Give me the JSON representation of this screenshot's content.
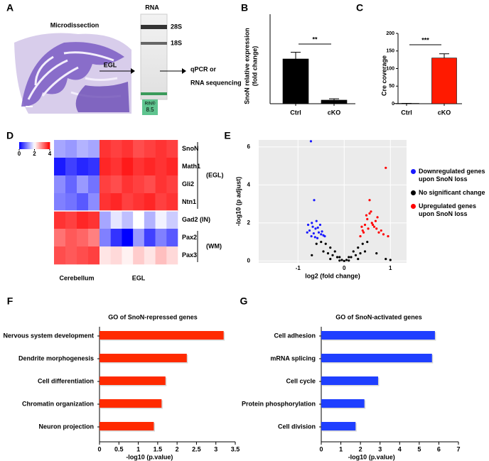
{
  "panel_labels": [
    "A",
    "B",
    "C",
    "D",
    "E",
    "F",
    "G"
  ],
  "panel_a": {
    "image_label": "Microdissection",
    "arrow_label": "EGL",
    "gel_label": "RNA",
    "bands": [
      "28S",
      "18S"
    ],
    "output": [
      "qPCR or",
      "RNA sequencing"
    ],
    "rin_label": "RIN®",
    "rin_value": "8.5"
  },
  "chart_data": [
    {
      "type": "bar",
      "ylabel": [
        "SnoN relative expression",
        "(fold change)"
      ],
      "categories": [
        "Ctrl",
        "cKO"
      ],
      "values": [
        1.0,
        0.08
      ],
      "errors": [
        0.15,
        0.03
      ],
      "color": "#000000",
      "ylim": [
        0,
        2
      ],
      "significance": "**"
    },
    {
      "type": "bar",
      "ylabel": [
        "Cre coverage"
      ],
      "categories": [
        "Ctrl",
        "cKO"
      ],
      "values": [
        1,
        130
      ],
      "errors": [
        0,
        12
      ],
      "color": "#ff1a00",
      "ylim": [
        0,
        200
      ],
      "yticks": [
        0,
        50,
        100,
        150,
        200
      ],
      "significance": "***"
    },
    {
      "type": "heatmap",
      "rows": [
        "SnoN",
        "Math1",
        "Gli2",
        "Ntn1",
        "Gad2 (IN)",
        "Pax2",
        "Pax3"
      ],
      "groups": [
        {
          "label": "Cerebellum",
          "values": [
            [
              1.3,
              1.2,
              1.4,
              1.3
            ],
            [
              0.2,
              0.5,
              0.3,
              0.4
            ],
            [
              1.1,
              0.8,
              1.2,
              0.9
            ],
            [
              1.0,
              0.9,
              0.7,
              1.1
            ],
            [
              3.6,
              3.5,
              3.7,
              3.6
            ],
            [
              3.1,
              3.3,
              3.2,
              3.0
            ],
            [
              3.4,
              3.3,
              3.4,
              3.5
            ]
          ]
        },
        {
          "label": "EGL",
          "values": [
            [
              3.6,
              3.5,
              3.6,
              3.4,
              3.5,
              3.6,
              3.5
            ],
            [
              3.7,
              3.6,
              3.8,
              3.6,
              3.7,
              3.6,
              3.7
            ],
            [
              3.5,
              3.4,
              3.6,
              3.5,
              3.4,
              3.6,
              3.5
            ],
            [
              3.6,
              3.7,
              3.5,
              3.6,
              3.7,
              3.5,
              3.6
            ],
            [
              1.3,
              1.8,
              1.5,
              2.0,
              1.4,
              1.9,
              1.6
            ],
            [
              1.0,
              0.4,
              0.0,
              1.2,
              0.5,
              1.0,
              0.7
            ],
            [
              2.2,
              2.3,
              2.1,
              2.4,
              2.2,
              2.5,
              2.3
            ]
          ]
        }
      ],
      "row_groups": [
        "(EGL)",
        "(WM)"
      ],
      "zlim": [
        0,
        4
      ],
      "zticks": [
        0,
        2,
        4
      ],
      "colors": [
        "#0000ff",
        "#ffffff",
        "#ff0000"
      ]
    },
    {
      "type": "scatter",
      "xlabel": "log2 (fold change)",
      "ylabel": "-log10 (p adjust)",
      "xlim": [
        -1.85,
        1.35
      ],
      "ylim": [
        -0.1,
        6.37
      ],
      "xticks": [
        -1,
        0,
        1
      ],
      "yticks": [
        0,
        2,
        4,
        6
      ],
      "series": [
        {
          "name": "Downregulated genes upon SnoN loss",
          "color": "#1a1aff",
          "x": [
            -0.72,
            -0.65,
            -0.78,
            -0.7,
            -0.62,
            -0.55,
            -0.6,
            -0.68,
            -0.75,
            -0.5,
            -0.58,
            -0.45,
            -0.52,
            -0.66,
            -0.71,
            -0.48,
            -0.63,
            -0.57,
            -0.8,
            -0.42
          ],
          "values": [
            6.3,
            3.2,
            1.9,
            2.0,
            1.7,
            1.5,
            2.1,
            1.8,
            1.6,
            1.4,
            1.2,
            1.35,
            1.9,
            1.45,
            1.3,
            1.55,
            1.25,
            1.75,
            1.5,
            1.3
          ]
        },
        {
          "name": "No significant change",
          "color": "#000000",
          "x": [
            -0.6,
            -0.5,
            -0.4,
            -0.3,
            -0.2,
            -0.1,
            0,
            0.1,
            0.2,
            0.3,
            0.4,
            0.5,
            -0.45,
            -0.35,
            -0.25,
            -0.15,
            -0.05,
            0.05,
            0.15,
            0.25,
            0.35,
            0.45,
            0.9,
            1.0,
            0.7,
            -0.7,
            -0.3,
            0.3,
            -0.1,
            0.1
          ],
          "values": [
            0.9,
            1.0,
            0.9,
            0.7,
            0.5,
            0.2,
            0,
            0.2,
            0.5,
            0.7,
            0.9,
            1.0,
            0.5,
            0.4,
            0.3,
            0.2,
            0.05,
            0.05,
            0.2,
            0.3,
            0.4,
            0.5,
            0.1,
            0.05,
            0.4,
            0.3,
            0.1,
            0.1,
            0.02,
            0.02
          ]
        },
        {
          "name": "Upregulated genes upon SnoN loss",
          "color": "#ff0000",
          "x": [
            0.9,
            0.55,
            0.35,
            0.4,
            0.45,
            0.5,
            0.55,
            0.6,
            0.65,
            0.7,
            0.75,
            0.8,
            0.85,
            0.38,
            0.48,
            0.58,
            0.68,
            0.42,
            0.52,
            0.62,
            0.72,
            0.95
          ],
          "values": [
            4.9,
            3.2,
            1.3,
            1.6,
            1.9,
            2.2,
            2.5,
            2.0,
            1.8,
            1.7,
            1.5,
            1.6,
            1.4,
            1.8,
            2.4,
            2.6,
            2.1,
            1.5,
            1.7,
            1.9,
            2.3,
            1.3
          ]
        }
      ]
    },
    {
      "type": "hbar",
      "title": "GO of SnoN-repressed genes",
      "xlabel": "-log10 (p.value)",
      "categories": [
        "Nervous system development",
        "Dendrite morphogenesis",
        "Cell differentiation",
        "Chromatin organization",
        "Neuron projection"
      ],
      "values": [
        3.2,
        2.25,
        1.7,
        1.6,
        1.4
      ],
      "color": "#ff2a00",
      "xlim": [
        0,
        3.5
      ],
      "xticks": [
        0,
        0.5,
        1,
        1.5,
        2,
        2.5,
        3,
        3.5
      ]
    },
    {
      "type": "hbar",
      "title": "GO of SnoN-activated genes",
      "xlabel": "-log10 (p.value)",
      "categories": [
        "Cell adhesion",
        "mRNA splicing",
        "Cell cycle",
        "Protein phosphorylation",
        "Cell division"
      ],
      "values": [
        5.8,
        5.65,
        2.9,
        2.2,
        1.75
      ],
      "color": "#1f3fff",
      "xlim": [
        0,
        7
      ],
      "xticks": [
        0,
        1,
        2,
        3,
        4,
        5,
        6,
        7
      ]
    }
  ]
}
